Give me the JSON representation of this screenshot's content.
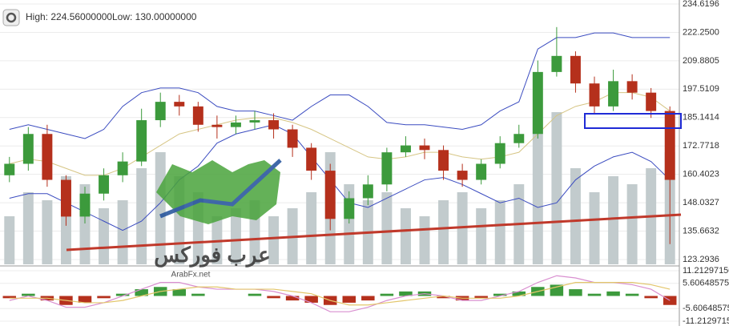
{
  "info": {
    "high": "High: 224.56000000",
    "low": "Low: 130.00000000"
  },
  "watermark": {
    "arabic": "عرب فوركس",
    "site": "ArabFx.net"
  },
  "chart_data": [
    {
      "type": "candlestick",
      "open": [
        160,
        165,
        178,
        158,
        142,
        152,
        160,
        166,
        184,
        192,
        190,
        182,
        181,
        183,
        184,
        180,
        172,
        162,
        141,
        150,
        156,
        170,
        173,
        171,
        162,
        158,
        165,
        174,
        178,
        205,
        212,
        200,
        190,
        201,
        196,
        188
      ],
      "high": [
        168,
        181,
        182,
        160,
        155,
        163,
        170,
        189,
        196,
        195,
        192,
        186,
        186,
        188,
        187,
        182,
        174,
        165,
        153,
        160,
        172,
        177,
        176,
        173,
        165,
        167,
        177,
        182,
        210,
        224.56,
        214,
        203,
        206,
        204,
        198,
        190
      ],
      "low": [
        157,
        162,
        155,
        138,
        139,
        149,
        157,
        164,
        181,
        186,
        179,
        176,
        178,
        180,
        176,
        168,
        158,
        136,
        139,
        147,
        153,
        168,
        167,
        158,
        155,
        156,
        163,
        172,
        176,
        203,
        196,
        187,
        188,
        193,
        185,
        130
      ],
      "close": [
        165,
        178,
        158,
        142,
        152,
        160,
        166,
        184,
        192,
        190,
        182,
        181,
        183,
        184,
        180,
        172,
        162,
        141,
        150,
        156,
        170,
        173,
        171,
        162,
        158,
        165,
        174,
        178,
        205,
        212,
        200,
        190,
        201,
        196,
        188,
        158
      ],
      "volume": [
        30,
        45,
        40,
        55,
        50,
        35,
        40,
        60,
        70,
        55,
        45,
        30,
        35,
        40,
        30,
        35,
        45,
        70,
        50,
        40,
        45,
        35,
        30,
        40,
        45,
        35,
        40,
        50,
        90,
        95,
        60,
        45,
        55,
        50,
        60,
        70
      ],
      "upper": [
        180,
        182,
        180,
        178,
        176,
        180,
        190,
        196,
        198,
        198,
        196,
        190,
        188,
        188,
        186,
        184,
        190,
        195,
        195,
        190,
        183,
        182,
        182,
        181,
        180,
        182,
        188,
        192,
        215,
        220,
        220,
        222,
        222,
        220,
        220,
        220
      ],
      "middle": [
        165,
        167,
        166,
        163,
        160,
        160,
        163,
        168,
        173,
        178,
        180,
        182,
        184,
        185,
        185,
        183,
        180,
        176,
        172,
        168,
        167,
        168,
        170,
        170,
        168,
        167,
        168,
        170,
        178,
        186,
        190,
        192,
        196,
        196,
        194,
        188
      ],
      "lower": [
        150,
        152,
        152,
        148,
        144,
        140,
        136,
        140,
        148,
        158,
        164,
        174,
        178,
        180,
        182,
        178,
        168,
        158,
        148,
        146,
        150,
        154,
        158,
        159,
        156,
        152,
        148,
        150,
        146,
        148,
        158,
        164,
        168,
        170,
        166,
        158
      ],
      "up_color": "#3c9a3c",
      "down_color": "#b5301c",
      "volume_color": "#c2cbcd",
      "band_color": "#3b4cc0",
      "middle_color": "#d6c584",
      "ylim": [
        123.2936,
        234.6196
      ],
      "yticks": [
        234.6196,
        {
          "value": 222.25,
          "label": "222.2500"
        },
        209.8805,
        197.5109,
        185.1414,
        172.7718,
        160.4023,
        148.0327,
        135.6632,
        123.2936
      ]
    },
    {
      "type": "macd",
      "histogram": [
        -1,
        1,
        -2,
        -4,
        -3,
        -1,
        1,
        3,
        4,
        3,
        1,
        0,
        0,
        1,
        -1,
        -2,
        -3,
        -4,
        -3,
        -2,
        1,
        2,
        2,
        -1,
        -2,
        -1,
        1,
        2,
        4,
        5,
        3,
        1,
        2,
        1,
        -1,
        -4
      ],
      "macd": [
        -2,
        0,
        -2,
        -5,
        -5,
        -3,
        0,
        3,
        6,
        6,
        4,
        3,
        3,
        3,
        2,
        0,
        -3,
        -7,
        -7,
        -5,
        -2,
        0,
        1,
        0,
        -2,
        -2,
        0,
        2,
        6,
        9,
        8,
        6,
        6,
        5,
        3,
        -2
      ],
      "signal": [
        -1,
        -1,
        -1,
        -2,
        -3,
        -3,
        -2,
        0,
        2,
        3,
        4,
        4,
        3,
        3,
        3,
        2,
        1,
        -2,
        -4,
        -4,
        -3,
        -2,
        -1,
        0,
        -1,
        -1,
        -1,
        0,
        2,
        4,
        6,
        6,
        6,
        6,
        5,
        3
      ],
      "up_color": "#3c9a3c",
      "down_color": "#b5301c",
      "macd_color": "#d98fd0",
      "signal_color": "#e3c66b",
      "ylim": [
        -11.2129715,
        11.2129715
      ],
      "yticks": [
        {
          "value": 11.2129715,
          "label": "11.21297150"
        },
        5.60648575,
        -5.60648575,
        -11.2129715
      ]
    }
  ]
}
